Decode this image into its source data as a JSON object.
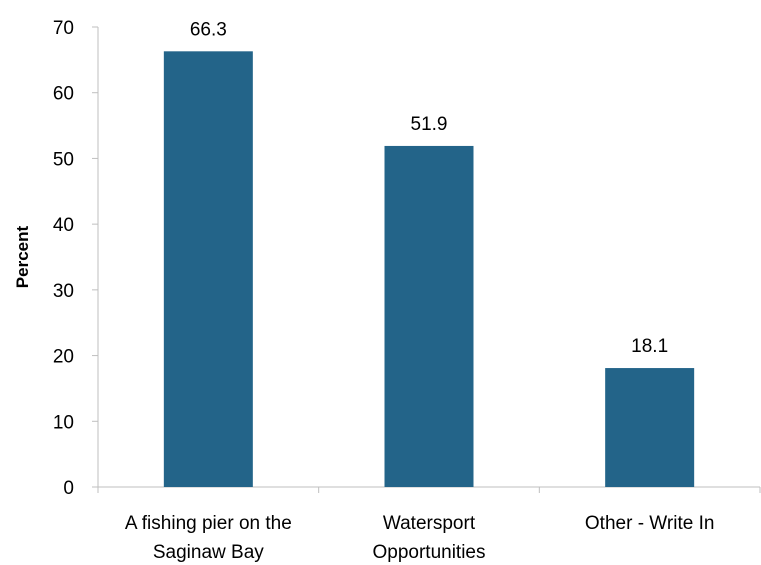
{
  "chart_data": {
    "type": "bar",
    "categories": [
      [
        "A fishing pier on the",
        "Saginaw Bay"
      ],
      [
        "Watersport",
        "Opportunities"
      ],
      [
        "Other - Write In"
      ]
    ],
    "values": [
      66.3,
      51.9,
      18.1
    ],
    "value_labels": [
      "66.3",
      "51.9",
      "18.1"
    ],
    "ylabel": "Percent",
    "ylim": [
      0,
      70
    ],
    "yticks": [
      "0",
      "10",
      "20",
      "30",
      "40",
      "50",
      "60",
      "70"
    ],
    "ytick_values": [
      0,
      10,
      20,
      30,
      40,
      50,
      60,
      70
    ],
    "grid": false,
    "legend": "none",
    "bar_color": "#236489",
    "axis_color": "#bfbfbf"
  }
}
